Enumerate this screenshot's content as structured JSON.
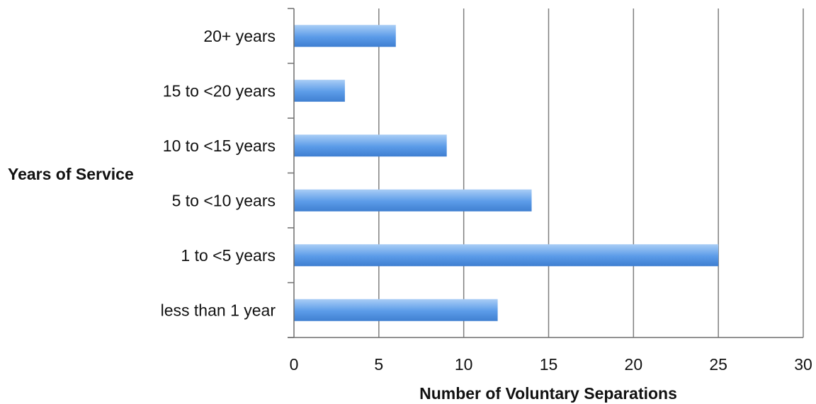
{
  "chart_data": {
    "type": "bar",
    "orientation": "horizontal",
    "categories": [
      "less than 1 year",
      "1 to <5  years",
      "5 to <10 years",
      "10 to <15 years",
      "15 to <20 years",
      "20+ years"
    ],
    "series": [
      {
        "values": [
          12,
          25,
          14,
          9,
          3,
          6
        ]
      }
    ],
    "xlabel": "Number of Voluntary Separations",
    "ylabel": "Years of Service",
    "xlim": [
      0,
      30
    ],
    "xticks": [
      0,
      5,
      10,
      15,
      20,
      25,
      30
    ],
    "grid": true,
    "legend": "none",
    "colors": {
      "bar": "#5b9be8",
      "bar_light": "#a9cdf6",
      "bar_dark": "#3f7fd1",
      "grid": "#7f7f7f",
      "axis": "#6e6e6e"
    }
  }
}
